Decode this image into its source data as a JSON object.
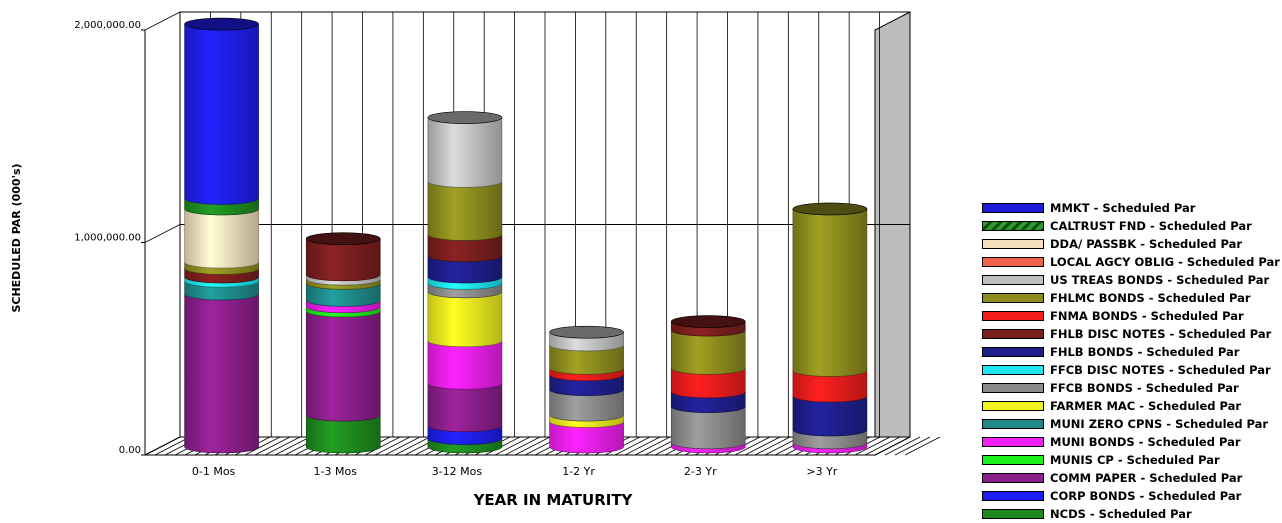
{
  "chart_data": {
    "type": "bar",
    "stacked": true,
    "style": "3d-cylinder",
    "xlabel": "YEAR IN MATURITY",
    "ylabel": "SCHEDULED PAR (000's)",
    "ylim": [
      0,
      2000000
    ],
    "yticks": [
      0,
      1000000,
      2000000
    ],
    "ytick_labels": [
      "0.00",
      "1,000,000.00",
      "2,000,000.00"
    ],
    "grid": true,
    "legend_position": "right",
    "categories": [
      "0-1 Mos",
      "1-3 Mos",
      "3-12 Mos",
      "1-2 Yr",
      "2-3 Yr",
      ">3 Yr"
    ],
    "series": [
      {
        "name": "MMKT - Scheduled Par",
        "color": "#1c1cd6",
        "values": [
          0,
          0,
          0,
          0,
          0,
          0
        ]
      },
      {
        "name": "CALTRUST FND - Scheduled Par",
        "color": "#2e9a2e",
        "pattern": "hatch",
        "values": [
          0,
          0,
          0,
          0,
          0,
          0
        ]
      },
      {
        "name": "DDA/ PASSBK - Scheduled Par",
        "color": "#f5dfba",
        "values": [
          250000,
          0,
          0,
          0,
          0,
          0
        ]
      },
      {
        "name": "LOCAL AGCY OBLIG - Scheduled Par",
        "color": "#f2624a",
        "values": [
          0,
          0,
          0,
          0,
          0,
          0
        ]
      },
      {
        "name": "US TREAS BONDS - Scheduled Par",
        "color": "#c0c0c0",
        "values": [
          0,
          20000,
          300000,
          60000,
          0,
          0
        ]
      },
      {
        "name": "FHLMC BONDS - Scheduled Par",
        "color": "#8c8c1e",
        "values": [
          30000,
          20000,
          250000,
          110000,
          180000,
          760000
        ]
      },
      {
        "name": "FNMA BONDS - Scheduled Par",
        "color": "#f21c1c",
        "values": [
          0,
          0,
          0,
          30000,
          110000,
          120000
        ]
      },
      {
        "name": "FHLB DISC NOTES - Scheduled Par",
        "color": "#7a1e1e",
        "values": [
          40000,
          170000,
          100000,
          0,
          40000,
          0
        ]
      },
      {
        "name": "FHLB BONDS - Scheduled Par",
        "color": "#1e1e8c",
        "values": [
          0,
          0,
          100000,
          70000,
          70000,
          160000
        ]
      },
      {
        "name": "FFCB DISC NOTES - Scheduled Par",
        "color": "#1ee6f2",
        "values": [
          20000,
          0,
          30000,
          0,
          0,
          0
        ]
      },
      {
        "name": "FFCB BONDS - Scheduled Par",
        "color": "#8a8a8a",
        "values": [
          0,
          0,
          40000,
          120000,
          170000,
          60000
        ]
      },
      {
        "name": "FARMER MAC - Scheduled Par",
        "color": "#f2f21e",
        "values": [
          0,
          0,
          230000,
          30000,
          0,
          0
        ]
      },
      {
        "name": "MUNI ZERO CPNS - Scheduled Par",
        "color": "#1e8a8a",
        "values": [
          60000,
          80000,
          0,
          0,
          0,
          0
        ]
      },
      {
        "name": "MUNI BONDS - Scheduled Par",
        "color": "#f21ef2",
        "values": [
          0,
          30000,
          200000,
          120000,
          20000,
          20000
        ]
      },
      {
        "name": "MUNIS CP - Scheduled Par",
        "color": "#1ef21e",
        "values": [
          0,
          20000,
          0,
          0,
          0,
          0
        ]
      },
      {
        "name": "COMM PAPER - Scheduled Par",
        "color": "#8a1e8a",
        "values": [
          720000,
          490000,
          200000,
          0,
          0,
          0
        ]
      },
      {
        "name": "CORP BONDS - Scheduled Par",
        "color": "#1e1ef2",
        "values": [
          820000,
          0,
          60000,
          0,
          0,
          0
        ]
      },
      {
        "name": "NCDS - Scheduled Par",
        "color": "#1e8a1e",
        "values": [
          50000,
          150000,
          40000,
          0,
          0,
          0
        ]
      }
    ],
    "stack_order_bottom_to_top": [
      "COMM PAPER - Scheduled Par",
      "MUNIS CP - Scheduled Par",
      "MUNI BONDS - Scheduled Par",
      "MUNI ZERO CPNS - Scheduled Par",
      "FARMER MAC - Scheduled Par",
      "FFCB BONDS - Scheduled Par",
      "FFCB DISC NOTES - Scheduled Par",
      "FHLB BONDS - Scheduled Par",
      "FHLB DISC NOTES - Scheduled Par",
      "FNMA BONDS - Scheduled Par",
      "FHLMC BONDS - Scheduled Par",
      "US TREAS BONDS - Scheduled Par",
      "LOCAL AGCY OBLIG - Scheduled Par",
      "DDA/ PASSBK - Scheduled Par",
      "CALTRUST FND - Scheduled Par",
      "MMKT - Scheduled Par",
      "CORP BONDS - Scheduled Par",
      "NCDS - Scheduled Par"
    ],
    "stack_order_by_category": [
      [
        "COMM PAPER - Scheduled Par",
        "MUNI ZERO CPNS - Scheduled Par",
        "FFCB DISC NOTES - Scheduled Par",
        "FHLB DISC NOTES - Scheduled Par",
        "FHLMC BONDS - Scheduled Par",
        "DDA/ PASSBK - Scheduled Par",
        "NCDS - Scheduled Par",
        "CORP BONDS - Scheduled Par"
      ],
      [
        "NCDS - Scheduled Par",
        "COMM PAPER - Scheduled Par",
        "MUNIS CP - Scheduled Par",
        "MUNI BONDS - Scheduled Par",
        "MUNI ZERO CPNS - Scheduled Par",
        "FHLMC BONDS - Scheduled Par",
        "US TREAS BONDS - Scheduled Par",
        "FHLB DISC NOTES - Scheduled Par"
      ],
      [
        "NCDS - Scheduled Par",
        "CORP BONDS - Scheduled Par",
        "COMM PAPER - Scheduled Par",
        "MUNI BONDS - Scheduled Par",
        "FARMER MAC - Scheduled Par",
        "FFCB BONDS - Scheduled Par",
        "FFCB DISC NOTES - Scheduled Par",
        "FHLB BONDS - Scheduled Par",
        "FHLB DISC NOTES - Scheduled Par",
        "FHLMC BONDS - Scheduled Par",
        "US TREAS BONDS - Scheduled Par"
      ],
      [
        "MUNI BONDS - Scheduled Par",
        "FARMER MAC - Scheduled Par",
        "FFCB BONDS - Scheduled Par",
        "FHLB BONDS - Scheduled Par",
        "FNMA BONDS - Scheduled Par",
        "FHLMC BONDS - Scheduled Par",
        "US TREAS BONDS - Scheduled Par"
      ],
      [
        "MUNI BONDS - Scheduled Par",
        "FFCB BONDS - Scheduled Par",
        "FHLB BONDS - Scheduled Par",
        "FNMA BONDS - Scheduled Par",
        "FHLMC BONDS - Scheduled Par",
        "FHLB DISC NOTES - Scheduled Par"
      ],
      [
        "MUNI BONDS - Scheduled Par",
        "FFCB BONDS - Scheduled Par",
        "FHLB BONDS - Scheduled Par",
        "FNMA BONDS - Scheduled Par",
        "FHLMC BONDS - Scheduled Par"
      ]
    ]
  }
}
